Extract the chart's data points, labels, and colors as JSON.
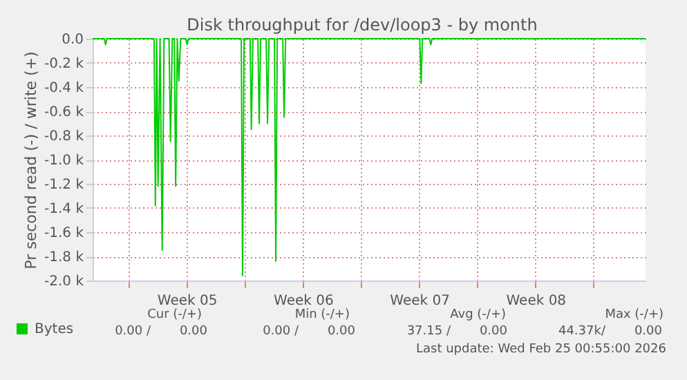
{
  "chart_data": {
    "type": "line",
    "title": "Disk throughput for /dev/loop3 - by month",
    "ylabel": "Pr second read (-) / write (+)",
    "x": [
      "2026-01-23T20:00",
      "2026-01-24T12:48",
      "2026-01-24T14:43",
      "2026-01-24T16:36",
      "2026-01-27T12:48",
      "2026-01-27T14:43",
      "2026-01-27T16:38",
      "2026-01-27T18:34",
      "2026-01-27T21:26",
      "2026-01-28T00:34",
      "2026-01-28T03:12",
      "2026-01-28T10:24",
      "2026-01-28T12:34",
      "2026-01-28T15:12",
      "2026-01-28T18:05",
      "2026-01-28T20:00",
      "2026-01-28T22:24",
      "2026-01-29T00:34",
      "2026-01-29T03:12",
      "2026-01-29T10:24",
      "2026-01-29T12:34",
      "2026-01-29T14:43",
      "2026-02-01T18:48",
      "2026-02-01T20:43",
      "2026-02-01T22:53",
      "2026-02-02T07:31",
      "2026-02-02T09:26",
      "2026-02-02T11:36",
      "2026-02-02T18:48",
      "2026-02-02T20:43",
      "2026-02-02T22:53",
      "2026-02-03T06:48",
      "2026-02-03T08:43",
      "2026-02-03T10:53",
      "2026-02-03T18:48",
      "2026-02-03T20:43",
      "2026-02-03T22:53",
      "2026-02-04T06:48",
      "2026-02-04T08:43",
      "2026-02-04T10:53",
      "2026-02-12T12:48",
      "2026-02-12T14:43",
      "2026-02-12T16:38",
      "2026-02-13T02:43",
      "2026-02-13T04:38",
      "2026-02-13T06:34",
      "2026-02-26T03:00"
    ],
    "series": [
      {
        "name": "Bytes",
        "color": "#00cc00",
        "values": [
          0,
          0,
          -50,
          0,
          0,
          -1380,
          0,
          -1220,
          0,
          -1750,
          0,
          0,
          -850,
          0,
          0,
          -1220,
          0,
          -350,
          0,
          0,
          -50,
          0,
          0,
          -1960,
          0,
          0,
          -750,
          0,
          0,
          -700,
          0,
          0,
          -700,
          0,
          0,
          -1840,
          0,
          0,
          -650,
          0,
          0,
          -370,
          0,
          0,
          -50,
          0,
          0
        ]
      }
    ],
    "xlim": [
      "2026-01-23T20:00",
      "2026-02-26T03:00"
    ],
    "xticks": [
      {
        "value": "2026-01-26",
        "label": null
      },
      {
        "value": "2026-01-29T12:00",
        "label": "Week 05"
      },
      {
        "value": "2026-02-02",
        "label": null
      },
      {
        "value": "2026-02-05T12:00",
        "label": "Week 06"
      },
      {
        "value": "2026-02-09",
        "label": null
      },
      {
        "value": "2026-02-12T12:00",
        "label": "Week 07"
      },
      {
        "value": "2026-02-16",
        "label": null
      },
      {
        "value": "2026-02-19T12:00",
        "label": "Week 08"
      },
      {
        "value": "2026-02-23",
        "label": null
      }
    ],
    "ylim": [
      -2000,
      0
    ],
    "yticks": [
      {
        "value": -2000,
        "label": "-2.0 k"
      },
      {
        "value": -1800,
        "label": "-1.8 k"
      },
      {
        "value": -1600,
        "label": "-1.6 k"
      },
      {
        "value": -1400,
        "label": "-1.4 k"
      },
      {
        "value": -1200,
        "label": "-1.2 k"
      },
      {
        "value": -1000,
        "label": "-1.0 k"
      },
      {
        "value": -800,
        "label": "-0.8 k"
      },
      {
        "value": -600,
        "label": "-0.6 k"
      },
      {
        "value": -400,
        "label": "-0.4 k"
      },
      {
        "value": -200,
        "label": "-0.2 k"
      },
      {
        "value": 0,
        "label": "0.0"
      }
    ],
    "grid": true,
    "legend": "bottom left",
    "line_style": "solid",
    "annotations": [
      "Cur (-/+)",
      "Min (-/+)",
      "Avg (-/+)",
      "Max (-/+)",
      "0.00 /",
      "0.00",
      "0.00 /",
      "0.00",
      "37.15 /",
      "0.00",
      "44.37k/",
      "0.00",
      "Last update: Wed Feb 25 00:55:00 2026"
    ]
  }
}
